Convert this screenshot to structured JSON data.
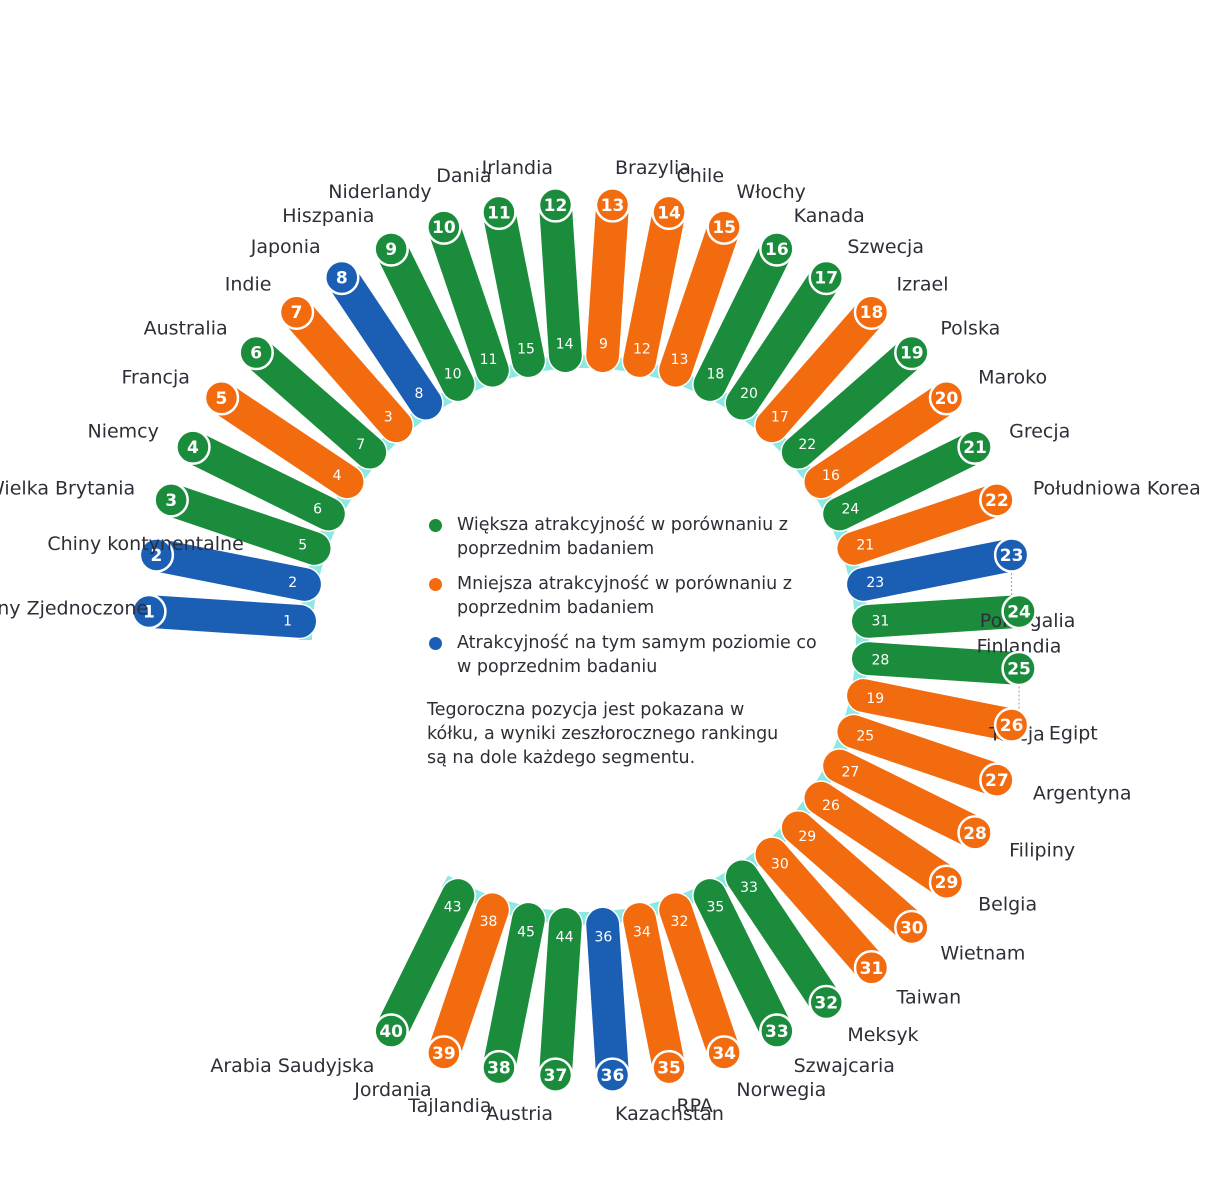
{
  "colors": {
    "green": "#1a8c3c",
    "orange": "#f26b0f",
    "blue": "#1b5fb5",
    "ring": "#8ee8e2",
    "text": "#2e2e38"
  },
  "legend": {
    "items": [
      {
        "status": "green",
        "text": "Większa atrakcyjność w porównaniu z poprzednim badaniem"
      },
      {
        "status": "orange",
        "text": "Mniejsza atrakcyjność w porównaniu z poprzednim badaniem"
      },
      {
        "status": "blue",
        "text": "Atrakcyjność na tym samym poziomie co w poprzednim badaniu"
      }
    ],
    "note": "Tegoroczna pozycja jest pokazana w kółku, a wyniki zeszłorocznego rankingu są na dole każdego segmentu."
  },
  "chart_data": {
    "type": "radial-ranking",
    "fields": [
      "country",
      "rank_current",
      "rank_previous",
      "status"
    ],
    "rows": [
      {
        "country": "Stany Zjednoczone",
        "rank": 1,
        "prev": 1,
        "status": "blue"
      },
      {
        "country": "Chiny kontynentalne",
        "rank": 2,
        "prev": 2,
        "status": "blue"
      },
      {
        "country": "Wielka Brytania",
        "rank": 3,
        "prev": 5,
        "status": "green"
      },
      {
        "country": "Niemcy",
        "rank": 4,
        "prev": 6,
        "status": "green"
      },
      {
        "country": "Francja",
        "rank": 5,
        "prev": 4,
        "status": "orange"
      },
      {
        "country": "Australia",
        "rank": 6,
        "prev": 7,
        "status": "green"
      },
      {
        "country": "Indie",
        "rank": 7,
        "prev": 3,
        "status": "orange"
      },
      {
        "country": "Japonia",
        "rank": 8,
        "prev": 8,
        "status": "blue"
      },
      {
        "country": "Hiszpania",
        "rank": 9,
        "prev": 10,
        "status": "green"
      },
      {
        "country": "Niderlandy",
        "rank": 10,
        "prev": 11,
        "status": "green"
      },
      {
        "country": "Dania",
        "rank": 11,
        "prev": 15,
        "status": "green"
      },
      {
        "country": "Irlandia",
        "rank": 12,
        "prev": 14,
        "status": "green"
      },
      {
        "country": "Brazylia",
        "rank": 13,
        "prev": 9,
        "status": "orange"
      },
      {
        "country": "Chile",
        "rank": 14,
        "prev": 12,
        "status": "orange"
      },
      {
        "country": "Włochy",
        "rank": 15,
        "prev": 13,
        "status": "orange"
      },
      {
        "country": "Kanada",
        "rank": 16,
        "prev": 18,
        "status": "green"
      },
      {
        "country": "Szwecja",
        "rank": 17,
        "prev": 20,
        "status": "green"
      },
      {
        "country": "Izrael",
        "rank": 18,
        "prev": 17,
        "status": "orange"
      },
      {
        "country": "Polska",
        "rank": 19,
        "prev": 22,
        "status": "green"
      },
      {
        "country": "Maroko",
        "rank": 20,
        "prev": 16,
        "status": "orange"
      },
      {
        "country": "Grecja",
        "rank": 21,
        "prev": 24,
        "status": "green"
      },
      {
        "country": "Południowa Korea",
        "rank": 22,
        "prev": 21,
        "status": "orange"
      },
      {
        "country": "Portugalia",
        "rank": 23,
        "prev": 23,
        "status": "blue"
      },
      {
        "country": "Finlandia",
        "rank": 24,
        "prev": 31,
        "status": "green"
      },
      {
        "country": "Turcja",
        "rank": 25,
        "prev": 28,
        "status": "green"
      },
      {
        "country": "Egipt",
        "rank": 26,
        "prev": 19,
        "status": "orange"
      },
      {
        "country": "Argentyna",
        "rank": 27,
        "prev": 25,
        "status": "orange"
      },
      {
        "country": "Filipiny",
        "rank": 28,
        "prev": 27,
        "status": "orange"
      },
      {
        "country": "Belgia",
        "rank": 29,
        "prev": 26,
        "status": "orange"
      },
      {
        "country": "Wietnam",
        "rank": 30,
        "prev": 29,
        "status": "orange"
      },
      {
        "country": "Taiwan",
        "rank": 31,
        "prev": 30,
        "status": "orange"
      },
      {
        "country": "Meksyk",
        "rank": 32,
        "prev": 33,
        "status": "green"
      },
      {
        "country": "Szwajcaria",
        "rank": 33,
        "prev": 35,
        "status": "green"
      },
      {
        "country": "Norwegia",
        "rank": 34,
        "prev": 32,
        "status": "orange"
      },
      {
        "country": "RPA",
        "rank": 35,
        "prev": 34,
        "status": "orange"
      },
      {
        "country": "Kazachstan",
        "rank": 36,
        "prev": 36,
        "status": "blue"
      },
      {
        "country": "Austria",
        "rank": 37,
        "prev": 44,
        "status": "green"
      },
      {
        "country": "Tajlandia",
        "rank": 38,
        "prev": 45,
        "status": "green"
      },
      {
        "country": "Jordania",
        "rank": 39,
        "prev": 38,
        "status": "orange"
      },
      {
        "country": "Arabia Saudyjska",
        "rank": 40,
        "prev": 43,
        "status": "green"
      }
    ]
  }
}
